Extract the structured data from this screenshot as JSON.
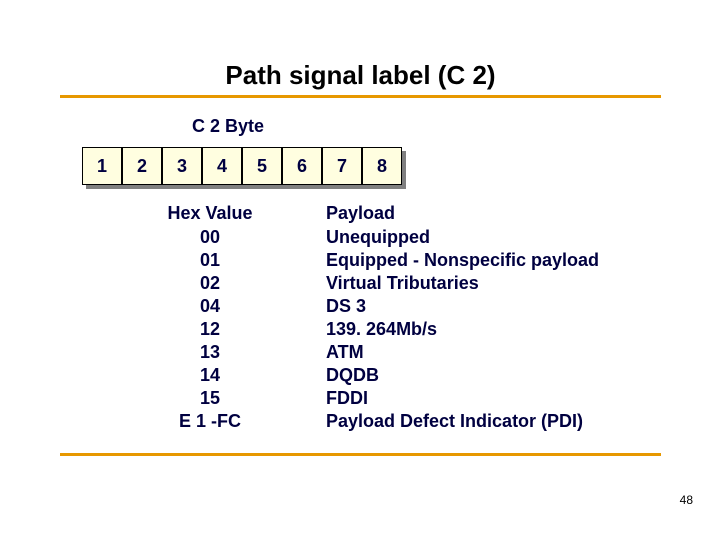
{
  "title": "Path signal label (C 2)",
  "byte_label": "C 2 Byte",
  "byte_cells": [
    "1",
    "2",
    "3",
    "4",
    "5",
    "6",
    "7",
    "8"
  ],
  "hex_header": "Hex Value",
  "payload_header": "Payload",
  "rows": [
    {
      "hex": "00",
      "payload": "Unequipped"
    },
    {
      "hex": "01",
      "payload": "Equipped - Nonspecific payload"
    },
    {
      "hex": "02",
      "payload": "Virtual Tributaries"
    },
    {
      "hex": "04",
      "payload": "DS 3"
    },
    {
      "hex": "12",
      "payload": "139. 264Mb/s"
    },
    {
      "hex": "13",
      "payload": "ATM"
    },
    {
      "hex": "14",
      "payload": "DQDB"
    },
    {
      "hex": "15",
      "payload": "FDDI"
    },
    {
      "hex": "E 1 -FC",
      "payload": "Payload Defect Indicator (PDI)"
    }
  ],
  "page_number": "48",
  "colors": {
    "accent": "#e79800",
    "cell_bg": "#fffee0",
    "text": "#000040",
    "shadow": "#808080"
  }
}
